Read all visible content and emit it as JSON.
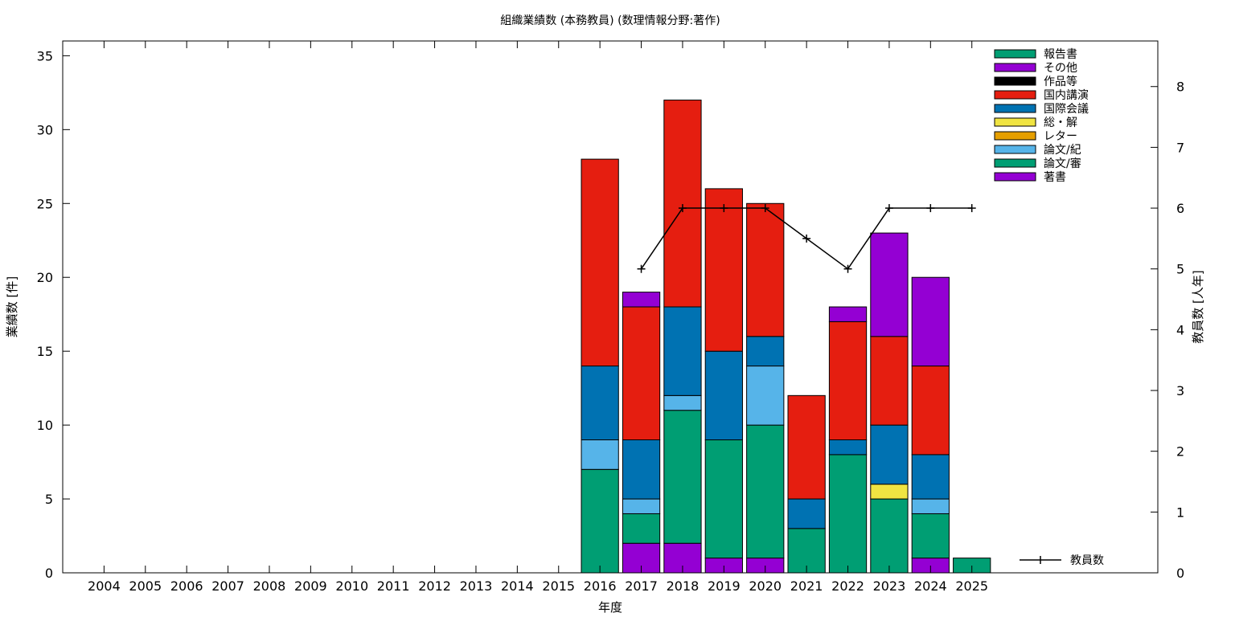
{
  "chart_data": {
    "type": "bar",
    "stacked": true,
    "title": "組織業績数 (本務教員) (数理情報分野:著作)",
    "xlabel": "年度",
    "ylabel": "業績数 [件]",
    "y2label": "教員数 [人年]",
    "categories": [
      "2004",
      "2005",
      "2006",
      "2007",
      "2008",
      "2009",
      "2010",
      "2011",
      "2012",
      "2013",
      "2014",
      "2015",
      "2016",
      "2017",
      "2018",
      "2019",
      "2020",
      "2021",
      "2022",
      "2023",
      "2024",
      "2025"
    ],
    "ylim": [
      0,
      36
    ],
    "yticks": [
      "0",
      "5",
      "10",
      "15",
      "20",
      "25",
      "30",
      "35"
    ],
    "y2lim": [
      0,
      8.75
    ],
    "y2ticks": [
      "0",
      "1",
      "2",
      "3",
      "4",
      "5",
      "6",
      "7",
      "8"
    ],
    "grid": false,
    "legend_position": "top-right",
    "series": [
      {
        "name": "著書",
        "color": "#9400d3",
        "values": [
          0,
          0,
          0,
          0,
          0,
          0,
          0,
          0,
          0,
          0,
          0,
          0,
          0,
          2,
          2,
          1,
          1,
          0,
          0,
          0,
          1,
          0
        ]
      },
      {
        "name": "論文/審",
        "color": "#009e73",
        "values": [
          0,
          0,
          0,
          0,
          0,
          0,
          0,
          0,
          0,
          0,
          0,
          0,
          7,
          2,
          9,
          8,
          9,
          3,
          8,
          5,
          3,
          1
        ]
      },
      {
        "name": "論文/紀",
        "color": "#56b4e9",
        "values": [
          0,
          0,
          0,
          0,
          0,
          0,
          0,
          0,
          0,
          0,
          0,
          0,
          2,
          1,
          1,
          0,
          4,
          0,
          0,
          0,
          1,
          0
        ]
      },
      {
        "name": "レター",
        "color": "#e69f00",
        "values": [
          0,
          0,
          0,
          0,
          0,
          0,
          0,
          0,
          0,
          0,
          0,
          0,
          0,
          0,
          0,
          0,
          0,
          0,
          0,
          0,
          0,
          0
        ]
      },
      {
        "name": "総・解",
        "color": "#f0e442",
        "values": [
          0,
          0,
          0,
          0,
          0,
          0,
          0,
          0,
          0,
          0,
          0,
          0,
          0,
          0,
          0,
          0,
          0,
          0,
          0,
          1,
          0,
          0
        ]
      },
      {
        "name": "国際会議",
        "color": "#0072b2",
        "values": [
          0,
          0,
          0,
          0,
          0,
          0,
          0,
          0,
          0,
          0,
          0,
          0,
          5,
          4,
          6,
          6,
          2,
          2,
          1,
          4,
          3,
          0
        ]
      },
      {
        "name": "国内講演",
        "color": "#e51e10",
        "values": [
          0,
          0,
          0,
          0,
          0,
          0,
          0,
          0,
          0,
          0,
          0,
          0,
          14,
          9,
          14,
          11,
          9,
          7,
          8,
          6,
          6,
          0
        ]
      },
      {
        "name": "作品等",
        "color": "#000000",
        "values": [
          0,
          0,
          0,
          0,
          0,
          0,
          0,
          0,
          0,
          0,
          0,
          0,
          0,
          0,
          0,
          0,
          0,
          0,
          0,
          0,
          0,
          0
        ]
      },
      {
        "name": "その他",
        "color": "#9400d3",
        "values": [
          0,
          0,
          0,
          0,
          0,
          0,
          0,
          0,
          0,
          0,
          0,
          0,
          0,
          1,
          0,
          0,
          0,
          0,
          1,
          7,
          6,
          0
        ]
      },
      {
        "name": "報告書",
        "color": "#009e73",
        "values": [
          0,
          0,
          0,
          0,
          0,
          0,
          0,
          0,
          0,
          0,
          0,
          0,
          0,
          0,
          0,
          0,
          0,
          0,
          0,
          0,
          0,
          0
        ]
      }
    ],
    "line_series": {
      "name": "教員数",
      "color": "#000000",
      "axis": "y2",
      "x": [
        "2017",
        "2018",
        "2019",
        "2020",
        "2021",
        "2022",
        "2023",
        "2024",
        "2025"
      ],
      "values": [
        5,
        6,
        6,
        6,
        5.5,
        5,
        6,
        6,
        6
      ]
    }
  }
}
